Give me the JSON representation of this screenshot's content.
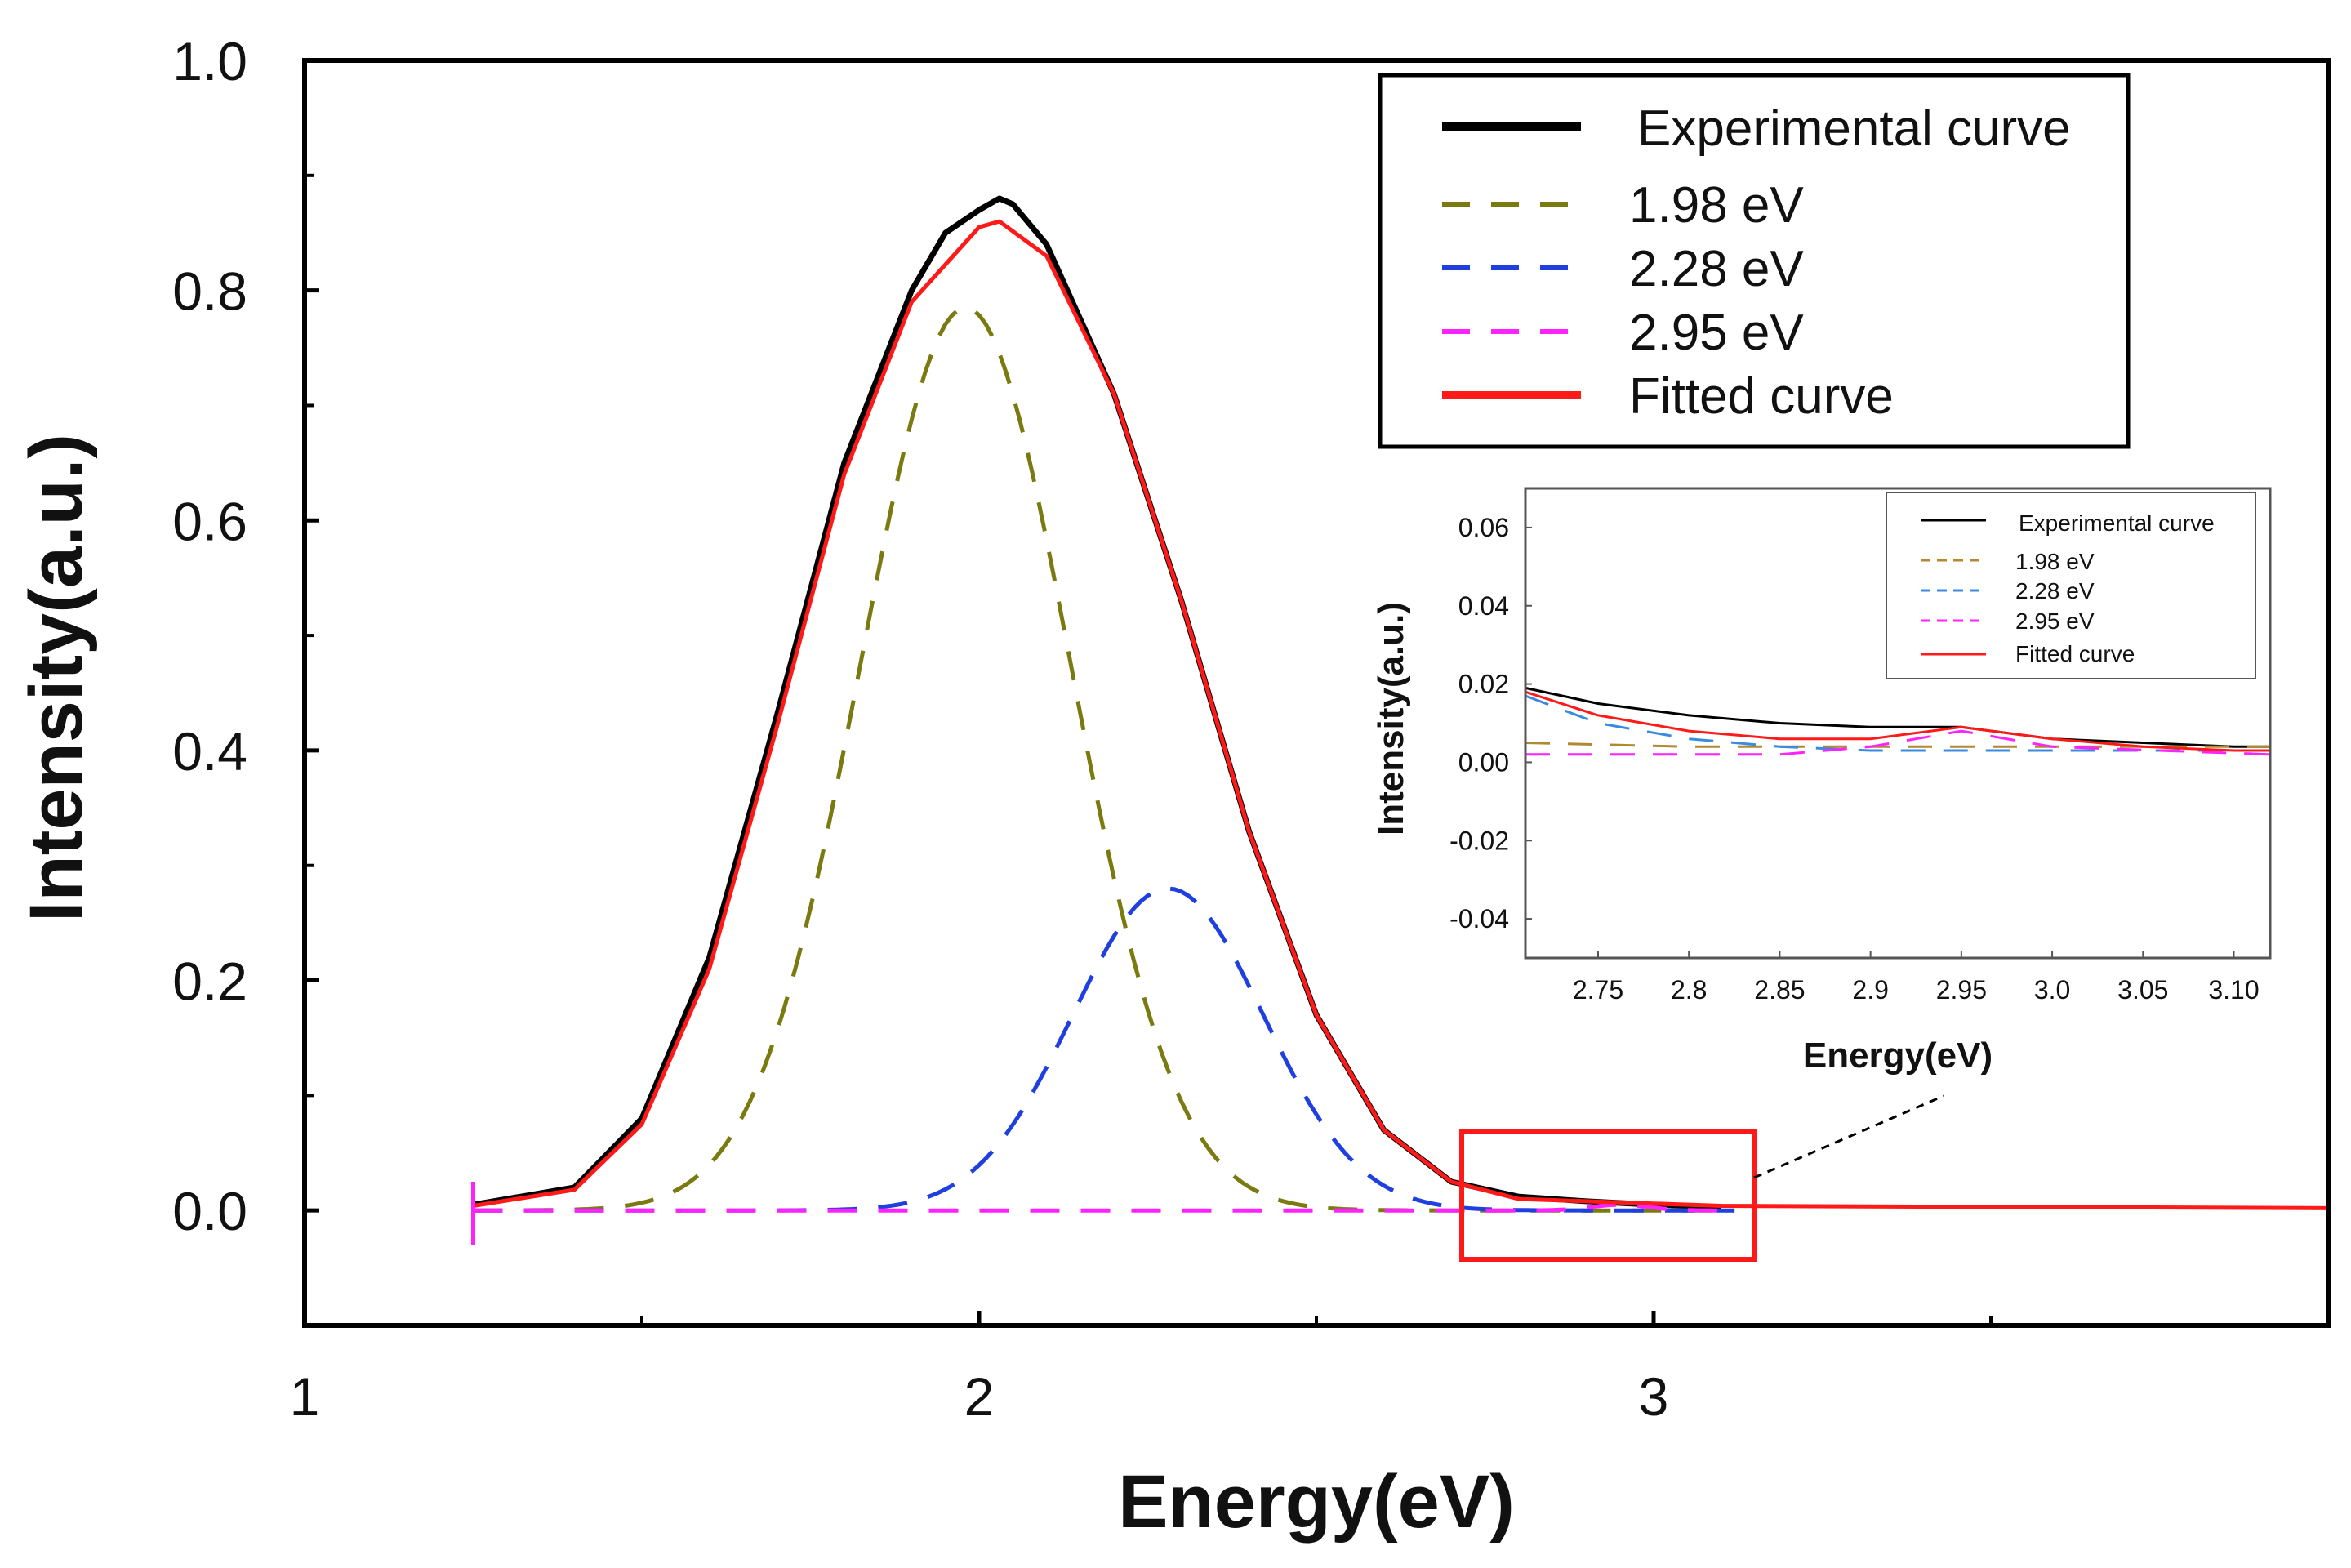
{
  "chart_data": [
    {
      "id": "main",
      "type": "line",
      "title": "",
      "xlabel": "Energy(eV)",
      "ylabel": "Intensity(a.u.)",
      "xlim": [
        1.0,
        4.0
      ],
      "ylim": [
        -0.1,
        1.0
      ],
      "xticks": [
        1,
        2,
        3
      ],
      "xtick_labels": [
        "1",
        "2",
        "3"
      ],
      "yticks": [
        0.0,
        0.2,
        0.4,
        0.6,
        0.8,
        1.0
      ],
      "ytick_labels": [
        "0.0",
        "0.2",
        "0.4",
        "0.6",
        "0.8",
        "1.0"
      ],
      "legend_position": "top-right",
      "series": [
        {
          "name": "Experimental curve",
          "color": "#000000",
          "style": "solid",
          "x": [
            1.25,
            1.4,
            1.5,
            1.6,
            1.7,
            1.8,
            1.9,
            1.95,
            2.0,
            2.03,
            2.05,
            2.1,
            2.2,
            2.3,
            2.4,
            2.5,
            2.6,
            2.7,
            2.8,
            2.9,
            3.0,
            3.1
          ],
          "y": [
            0.005,
            0.02,
            0.08,
            0.22,
            0.43,
            0.65,
            0.8,
            0.85,
            0.87,
            0.88,
            0.875,
            0.84,
            0.71,
            0.53,
            0.33,
            0.17,
            0.07,
            0.025,
            0.012,
            0.008,
            0.005,
            0.003
          ]
        },
        {
          "name": "1.98 eV",
          "color": "#7a7a10",
          "style": "dashed",
          "center": 1.98,
          "amplitude": 0.785,
          "width": 0.22
        },
        {
          "name": "2.28 eV",
          "color": "#1f3fe0",
          "style": "dashed",
          "center": 2.28,
          "amplitude": 0.28,
          "width": 0.2
        },
        {
          "name": "2.95 eV",
          "color": "#ff22ff",
          "style": "dashed",
          "center": 2.95,
          "amplitude": 0.005,
          "width": 0.06
        },
        {
          "name": "Fitted curve",
          "color": "#ff1a1a",
          "style": "solid",
          "x": [
            1.25,
            1.4,
            1.5,
            1.6,
            1.7,
            1.8,
            1.9,
            2.0,
            2.03,
            2.1,
            2.2,
            2.3,
            2.4,
            2.5,
            2.6,
            2.7,
            2.8,
            2.9,
            3.0,
            3.1,
            4.0
          ],
          "y": [
            0.004,
            0.018,
            0.075,
            0.21,
            0.42,
            0.64,
            0.79,
            0.855,
            0.86,
            0.83,
            0.71,
            0.53,
            0.33,
            0.17,
            0.07,
            0.025,
            0.01,
            0.008,
            0.006,
            0.004,
            0.002
          ]
        }
      ],
      "zoom_box": {
        "x_range": [
          2.72,
          3.15
        ],
        "y_range": [
          -0.045,
          0.07
        ]
      }
    },
    {
      "id": "inset",
      "type": "line",
      "title": "",
      "xlabel": "Energy(eV)",
      "ylabel": "Intensity(a.u.)",
      "xlim": [
        2.71,
        3.12
      ],
      "ylim": [
        -0.05,
        0.07
      ],
      "xticks": [
        2.75,
        2.8,
        2.85,
        2.9,
        2.95,
        3.0,
        3.05,
        3.1
      ],
      "xtick_labels": [
        "2.75",
        "2.8",
        "2.85",
        "2.9",
        "2.95",
        "3.0",
        "3.05",
        "3.10"
      ],
      "yticks": [
        -0.04,
        -0.02,
        0.0,
        0.02,
        0.04,
        0.06
      ],
      "ytick_labels": [
        "-0.04",
        "-0.02",
        "0.00",
        "0.02",
        "0.04",
        "0.06"
      ],
      "legend_position": "top-right",
      "series": [
        {
          "name": "Experimental curve",
          "color": "#000000",
          "style": "solid",
          "x": [
            2.71,
            2.75,
            2.8,
            2.85,
            2.9,
            2.95,
            3.0,
            3.05,
            3.1,
            3.12
          ],
          "y": [
            0.019,
            0.015,
            0.012,
            0.01,
            0.009,
            0.009,
            0.006,
            0.005,
            0.004,
            0.004
          ]
        },
        {
          "name": "1.98 eV",
          "color": "#b08a30",
          "style": "dashed",
          "x": [
            2.71,
            2.8,
            2.9,
            3.0,
            3.12
          ],
          "y": [
            0.005,
            0.004,
            0.004,
            0.004,
            0.004
          ]
        },
        {
          "name": "2.28 eV",
          "color": "#3a8be0",
          "style": "dashed",
          "x": [
            2.71,
            2.75,
            2.8,
            2.85,
            2.9,
            3.0,
            3.12
          ],
          "y": [
            0.017,
            0.01,
            0.006,
            0.004,
            0.003,
            0.003,
            0.003
          ]
        },
        {
          "name": "2.95 eV",
          "color": "#ff22ff",
          "style": "dashed",
          "x": [
            2.71,
            2.85,
            2.9,
            2.95,
            3.0,
            3.12
          ],
          "y": [
            0.002,
            0.002,
            0.004,
            0.008,
            0.004,
            0.002
          ]
        },
        {
          "name": "Fitted curve",
          "color": "#ff1a1a",
          "style": "solid",
          "x": [
            2.71,
            2.75,
            2.8,
            2.85,
            2.9,
            2.95,
            3.0,
            3.05,
            3.1,
            3.12
          ],
          "y": [
            0.018,
            0.012,
            0.008,
            0.006,
            0.006,
            0.009,
            0.006,
            0.004,
            0.003,
            0.003
          ]
        }
      ]
    }
  ]
}
